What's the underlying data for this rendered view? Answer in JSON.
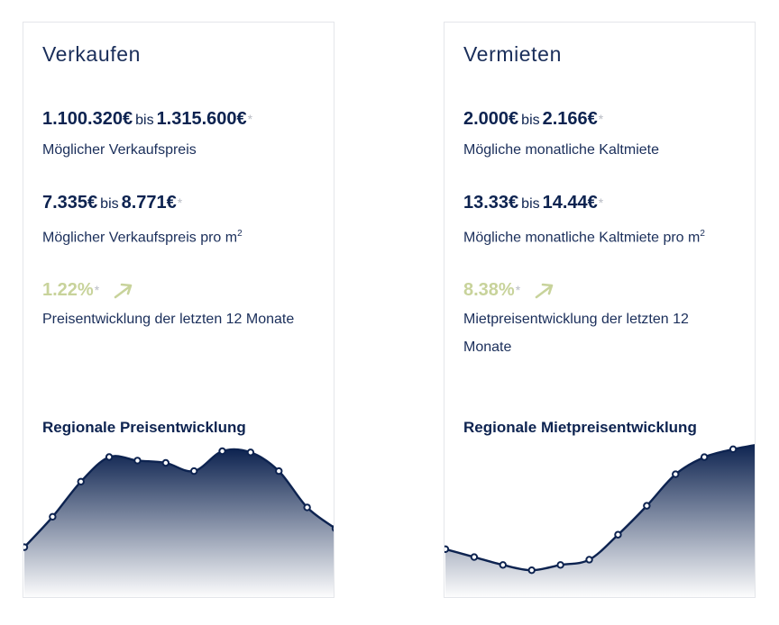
{
  "colors": {
    "primary": "#0d2350",
    "trend_green": "#c8d39b",
    "asterisk": "#b8bcc4",
    "card_border": "#e4e6ea"
  },
  "sell": {
    "title": "Verkaufen",
    "price": {
      "low": "1.100.320€",
      "sep": "bis",
      "high": "1.315.600€",
      "mark": "*",
      "label": "Möglicher Verkaufspreis"
    },
    "sqm": {
      "low": "7.335€",
      "sep": "bis",
      "high": "8.771€",
      "mark": "*",
      "label": "Möglicher Verkaufspreis pro m",
      "sup": "2"
    },
    "trend": {
      "value": "1.22%",
      "mark": "*",
      "icon": "arrow-up-right-icon",
      "label": "Preisentwicklung der letzten 12 Monate"
    },
    "chart_title": "Regionale Preisentwicklung"
  },
  "rent": {
    "title": "Vermieten",
    "price": {
      "low": "2.000€",
      "sep": "bis",
      "high": "2.166€",
      "mark": "*",
      "label": "Mögliche monatliche Kaltmiete"
    },
    "sqm": {
      "low": "13.33€",
      "sep": "bis",
      "high": "14.44€",
      "mark": "*",
      "label": "Mögliche monatliche Kaltmiete pro m",
      "sup": "2"
    },
    "trend": {
      "value": "8.38%",
      "mark": "*",
      "icon": "arrow-up-right-icon",
      "label": "Mietpreisentwicklung der letzten 12 Monate"
    },
    "chart_title": "Regionale Mietpreisentwicklung"
  },
  "chart_data": [
    {
      "type": "area",
      "title": "Regionale Preisentwicklung",
      "x": [
        1,
        2,
        3,
        4,
        5,
        6,
        7,
        8,
        9,
        10,
        11,
        12
      ],
      "values": [
        0.18,
        0.44,
        0.74,
        0.95,
        0.92,
        0.9,
        0.83,
        1.0,
        0.99,
        0.83,
        0.52,
        0.34
      ],
      "ylim": [
        0,
        1
      ],
      "grid": false,
      "axes_labeled": false
    },
    {
      "type": "area",
      "title": "Regionale Mietpreisentwicklung",
      "x": [
        1,
        2,
        3,
        4,
        5,
        6,
        7,
        8,
        9,
        10,
        11,
        12
      ],
      "values": [
        0.2,
        0.14,
        0.08,
        0.04,
        0.08,
        0.12,
        0.31,
        0.53,
        0.77,
        0.9,
        0.96,
        1.0
      ],
      "ylim": [
        0,
        1
      ],
      "grid": false,
      "axes_labeled": false
    }
  ]
}
